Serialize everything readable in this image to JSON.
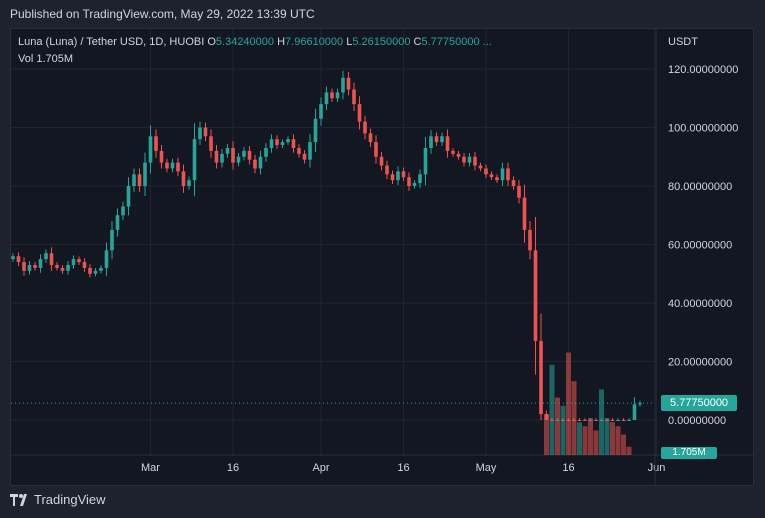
{
  "published": "Published on TradingView.com, May 29, 2022 13:39 UTC",
  "legend": {
    "symbol": "Luna  (Luna)  / Tether USD, 1D, HUOBI",
    "o_label": "O",
    "o_value": "5.34240000",
    "h_label": "H",
    "h_value": "7.96610000",
    "l_label": "L",
    "l_value": "5.26150000",
    "c_label": "C",
    "c_value": "5.77750000 ...",
    "vol_label": "Vol",
    "vol_value": "1.705M"
  },
  "axis_unit": "USDT",
  "last_price_tag": "5.77750000",
  "last_volume_tag": "1.705M",
  "footer_brand": "TradingView",
  "colors": {
    "up": "#26a69a",
    "down": "#ef5350",
    "grid": "#1f2430",
    "text": "#d1d4dc"
  },
  "chart_data": {
    "type": "candlestick",
    "title": "Luna (Luna) / Tether USD, 1D, HUOBI",
    "y_tick_labels": [
      "120.00000000",
      "100.00000000",
      "80.00000000",
      "60.00000000",
      "40.00000000",
      "20.00000000",
      "0.00000000"
    ],
    "y_ticks": [
      120,
      100,
      80,
      60,
      40,
      20,
      0
    ],
    "ylim": [
      -12,
      132
    ],
    "x_tick_labels": [
      "Mar",
      "16",
      "Apr",
      "16",
      "May",
      "16",
      "Jun"
    ],
    "x_tick_dates": [
      "2022-03-01",
      "2022-03-16",
      "2022-04-01",
      "2022-04-16",
      "2022-05-01",
      "2022-05-16",
      "2022-06-01"
    ],
    "last_price": 5.7775,
    "series": [
      {
        "name": "Price",
        "values": [
          {
            "d": "2022-02-04",
            "c": 56
          },
          {
            "d": "2022-02-05",
            "c": 54
          },
          {
            "d": "2022-02-06",
            "c": 51
          },
          {
            "d": "2022-02-07",
            "c": 53
          },
          {
            "d": "2022-02-08",
            "c": 52
          },
          {
            "d": "2022-02-09",
            "c": 55
          },
          {
            "d": "2022-02-10",
            "c": 57
          },
          {
            "d": "2022-02-11",
            "c": 53
          },
          {
            "d": "2022-02-12",
            "c": 52
          },
          {
            "d": "2022-02-13",
            "c": 51
          },
          {
            "d": "2022-02-14",
            "c": 53
          },
          {
            "d": "2022-02-15",
            "c": 55
          },
          {
            "d": "2022-02-16",
            "c": 54
          },
          {
            "d": "2022-02-17",
            "c": 52
          },
          {
            "d": "2022-02-18",
            "c": 50
          },
          {
            "d": "2022-02-19",
            "c": 51
          },
          {
            "d": "2022-02-20",
            "c": 52
          },
          {
            "d": "2022-02-21",
            "c": 58
          },
          {
            "d": "2022-02-22",
            "c": 65
          },
          {
            "d": "2022-02-23",
            "c": 70
          },
          {
            "d": "2022-02-24",
            "c": 73
          },
          {
            "d": "2022-02-25",
            "c": 80
          },
          {
            "d": "2022-02-26",
            "c": 84
          },
          {
            "d": "2022-02-27",
            "c": 80
          },
          {
            "d": "2022-02-28",
            "c": 88
          },
          {
            "d": "2022-03-01",
            "c": 97
          },
          {
            "d": "2022-03-02",
            "c": 92
          },
          {
            "d": "2022-03-03",
            "c": 88
          },
          {
            "d": "2022-03-04",
            "c": 86
          },
          {
            "d": "2022-03-05",
            "c": 88
          },
          {
            "d": "2022-03-06",
            "c": 85
          },
          {
            "d": "2022-03-07",
            "c": 80
          },
          {
            "d": "2022-03-08",
            "c": 82
          },
          {
            "d": "2022-03-09",
            "c": 96
          },
          {
            "d": "2022-03-10",
            "c": 100
          },
          {
            "d": "2022-03-11",
            "c": 97
          },
          {
            "d": "2022-03-12",
            "c": 92
          },
          {
            "d": "2022-03-13",
            "c": 88
          },
          {
            "d": "2022-03-14",
            "c": 91
          },
          {
            "d": "2022-03-15",
            "c": 93
          },
          {
            "d": "2022-03-16",
            "c": 88
          },
          {
            "d": "2022-03-17",
            "c": 90
          },
          {
            "d": "2022-03-18",
            "c": 92
          },
          {
            "d": "2022-03-19",
            "c": 89
          },
          {
            "d": "2022-03-20",
            "c": 86
          },
          {
            "d": "2022-03-21",
            "c": 90
          },
          {
            "d": "2022-03-22",
            "c": 93
          },
          {
            "d": "2022-03-23",
            "c": 96
          },
          {
            "d": "2022-03-24",
            "c": 94
          },
          {
            "d": "2022-03-25",
            "c": 95
          },
          {
            "d": "2022-03-26",
            "c": 96
          },
          {
            "d": "2022-03-27",
            "c": 93
          },
          {
            "d": "2022-03-28",
            "c": 91
          },
          {
            "d": "2022-03-29",
            "c": 89
          },
          {
            "d": "2022-03-30",
            "c": 95
          },
          {
            "d": "2022-03-31",
            "c": 103
          },
          {
            "d": "2022-04-01",
            "c": 108
          },
          {
            "d": "2022-04-02",
            "c": 112
          },
          {
            "d": "2022-04-03",
            "c": 110
          },
          {
            "d": "2022-04-04",
            "c": 112
          },
          {
            "d": "2022-04-05",
            "c": 117
          },
          {
            "d": "2022-04-06",
            "c": 113
          },
          {
            "d": "2022-04-07",
            "c": 108
          },
          {
            "d": "2022-04-08",
            "c": 102
          },
          {
            "d": "2022-04-09",
            "c": 98
          },
          {
            "d": "2022-04-10",
            "c": 95
          },
          {
            "d": "2022-04-11",
            "c": 90
          },
          {
            "d": "2022-04-12",
            "c": 87
          },
          {
            "d": "2022-04-13",
            "c": 84
          },
          {
            "d": "2022-04-14",
            "c": 82
          },
          {
            "d": "2022-04-15",
            "c": 85
          },
          {
            "d": "2022-04-16",
            "c": 83
          },
          {
            "d": "2022-04-17",
            "c": 80
          },
          {
            "d": "2022-04-18",
            "c": 81
          },
          {
            "d": "2022-04-19",
            "c": 84
          },
          {
            "d": "2022-04-20",
            "c": 93
          },
          {
            "d": "2022-04-21",
            "c": 97
          },
          {
            "d": "2022-04-22",
            "c": 95
          },
          {
            "d": "2022-04-23",
            "c": 97
          },
          {
            "d": "2022-04-24",
            "c": 92
          },
          {
            "d": "2022-04-25",
            "c": 91
          },
          {
            "d": "2022-04-26",
            "c": 90
          },
          {
            "d": "2022-04-27",
            "c": 88
          },
          {
            "d": "2022-04-28",
            "c": 90
          },
          {
            "d": "2022-04-29",
            "c": 87
          },
          {
            "d": "2022-04-30",
            "c": 86
          },
          {
            "d": "2022-05-01",
            "c": 84
          },
          {
            "d": "2022-05-02",
            "c": 83
          },
          {
            "d": "2022-05-03",
            "c": 82
          },
          {
            "d": "2022-05-04",
            "c": 86
          },
          {
            "d": "2022-05-05",
            "c": 82
          },
          {
            "d": "2022-05-06",
            "c": 80
          },
          {
            "d": "2022-05-07",
            "c": 76
          },
          {
            "d": "2022-05-08",
            "c": 65
          },
          {
            "d": "2022-05-09",
            "c": 58
          },
          {
            "d": "2022-05-10",
            "c": 27
          },
          {
            "d": "2022-05-11",
            "c": 2
          },
          {
            "d": "2022-05-12",
            "c": 0.05
          },
          {
            "d": "2022-05-13",
            "c": 0.00015
          },
          {
            "d": "2022-05-14",
            "c": 0.0002
          },
          {
            "d": "2022-05-15",
            "c": 0.00018
          },
          {
            "d": "2022-05-16",
            "c": 0.00016
          },
          {
            "d": "2022-05-17",
            "c": 0.00015
          },
          {
            "d": "2022-05-18",
            "c": 0.00012
          },
          {
            "d": "2022-05-19",
            "c": 0.0001
          },
          {
            "d": "2022-05-20",
            "c": 0.00011
          },
          {
            "d": "2022-05-21",
            "c": 0.0001
          },
          {
            "d": "2022-05-22",
            "c": 0.00012
          },
          {
            "d": "2022-05-23",
            "c": 0.0001
          },
          {
            "d": "2022-05-24",
            "c": 9e-05
          },
          {
            "d": "2022-05-25",
            "c": 9e-05
          },
          {
            "d": "2022-05-26",
            "c": 8e-05
          },
          {
            "d": "2022-05-27",
            "c": 8e-05
          },
          {
            "d": "2022-05-28",
            "c": 5.34
          },
          {
            "d": "2022-05-29",
            "c": 5.7775
          }
        ]
      },
      {
        "name": "Vol",
        "values": [
          {
            "d": "2022-05-12",
            "v": 10,
            "up": false
          },
          {
            "d": "2022-05-13",
            "v": 22,
            "up": true
          },
          {
            "d": "2022-05-14",
            "v": 14,
            "up": false
          },
          {
            "d": "2022-05-15",
            "v": 12,
            "up": true
          },
          {
            "d": "2022-05-16",
            "v": 25,
            "up": false
          },
          {
            "d": "2022-05-17",
            "v": 18,
            "up": false
          },
          {
            "d": "2022-05-18",
            "v": 8,
            "up": true
          },
          {
            "d": "2022-05-19",
            "v": 7,
            "up": false
          },
          {
            "d": "2022-05-20",
            "v": 9,
            "up": false
          },
          {
            "d": "2022-05-21",
            "v": 6,
            "up": false
          },
          {
            "d": "2022-05-22",
            "v": 16,
            "up": true
          },
          {
            "d": "2022-05-23",
            "v": 9,
            "up": true
          },
          {
            "d": "2022-05-24",
            "v": 8,
            "up": false
          },
          {
            "d": "2022-05-25",
            "v": 7,
            "up": false
          },
          {
            "d": "2022-05-26",
            "v": 5,
            "up": false
          },
          {
            "d": "2022-05-27",
            "v": 2,
            "up": false
          }
        ]
      }
    ]
  }
}
